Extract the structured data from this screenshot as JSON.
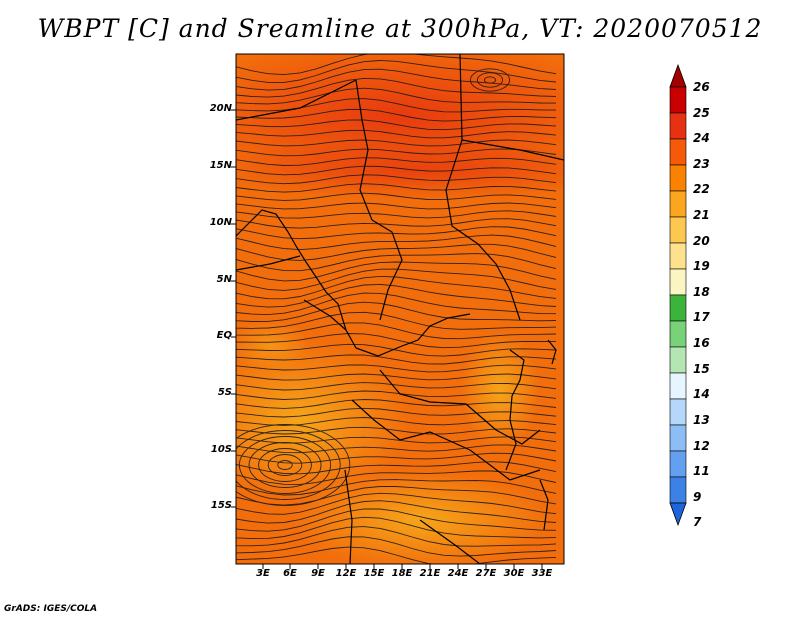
{
  "title": "WBPT [C] and Sreamline at 300hPa, VT: 2020070512",
  "credit": "GrADS: IGES/COLA",
  "map": {
    "lat_labels": [
      "20N",
      "15N",
      "10N",
      "5N",
      "EQ",
      "5S",
      "10S",
      "15S"
    ],
    "lon_labels": [
      "3E",
      "6E",
      "9E",
      "12E",
      "15E",
      "18E",
      "21E",
      "24E",
      "27E",
      "30E",
      "33E"
    ],
    "field": "WBPT [C] at 300hPa",
    "streamlines": "300hPa wind streamlines"
  },
  "colorbar": {
    "levels": [
      "26",
      "25",
      "24",
      "23",
      "22",
      "21",
      "20",
      "19",
      "18",
      "17",
      "16",
      "15",
      "14",
      "13",
      "12",
      "11",
      "9",
      "7"
    ],
    "colors": [
      "#a50000",
      "#c80000",
      "#e63212",
      "#f55a0a",
      "#fa8200",
      "#fca51e",
      "#fdc850",
      "#fde18c",
      "#fbf5c2",
      "#3cb43c",
      "#78d278",
      "#b4e6b4",
      "#e6f5ff",
      "#b4d7fa",
      "#8cbef5",
      "#64a0f0",
      "#3c82e6",
      "#1e64dc"
    ]
  }
}
